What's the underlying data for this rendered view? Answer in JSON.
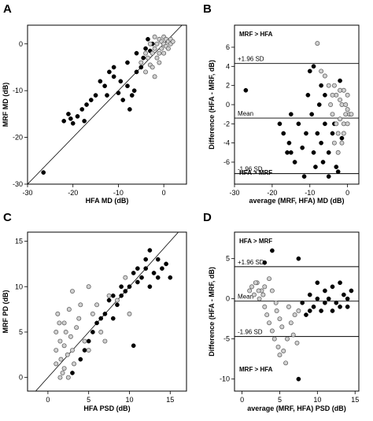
{
  "chart_data": [
    {
      "panel": "A",
      "type": "scatter",
      "xlabel": "HFA MD (dB)",
      "ylabel": "MRF MD (dB)",
      "xlim": [
        -30,
        5
      ],
      "ylim": [
        -30,
        4
      ],
      "xticks": [
        -30,
        -20,
        -10,
        0
      ],
      "yticks": [
        -30,
        -20,
        -10,
        0
      ],
      "identity_line": true,
      "series": [
        {
          "marker": "filled",
          "points": [
            [
              -26.5,
              -27.5
            ],
            [
              -22,
              -16.5
            ],
            [
              -21,
              -15
            ],
            [
              -20.5,
              -16
            ],
            [
              -20,
              -17
            ],
            [
              -19,
              -15.5
            ],
            [
              -18,
              -14
            ],
            [
              -17.5,
              -16.5
            ],
            [
              -17,
              -13
            ],
            [
              -16,
              -12
            ],
            [
              -15,
              -11
            ],
            [
              -14,
              -8
            ],
            [
              -13,
              -9
            ],
            [
              -12,
              -6
            ],
            [
              -11,
              -5
            ],
            [
              -12.5,
              -11
            ],
            [
              -11,
              -7
            ],
            [
              -10,
              -10.5
            ],
            [
              -9.5,
              -8
            ],
            [
              -9,
              -12
            ],
            [
              -8,
              -4
            ],
            [
              -8,
              -9
            ],
            [
              -7.5,
              -14
            ],
            [
              -7,
              -11
            ],
            [
              -6.5,
              -10
            ],
            [
              -6,
              -2
            ],
            [
              -6,
              -6
            ],
            [
              -5,
              -5
            ],
            [
              -4.5,
              -3
            ],
            [
              -4,
              -1
            ],
            [
              -3.5,
              1
            ],
            [
              -3,
              -1.5
            ],
            [
              -2.5,
              0
            ]
          ]
        },
        {
          "marker": "open",
          "points": [
            [
              -5,
              -4
            ],
            [
              -4,
              -6
            ],
            [
              -3.5,
              -3
            ],
            [
              -3,
              -4.5
            ],
            [
              -2.5,
              -2
            ],
            [
              -2.5,
              -5
            ],
            [
              -2,
              -1
            ],
            [
              -2,
              -7
            ],
            [
              -1.5,
              0
            ],
            [
              -1.5,
              -3
            ],
            [
              -1,
              1
            ],
            [
              -1,
              -2
            ],
            [
              -1,
              -4
            ],
            [
              -0.5,
              0.5
            ],
            [
              -0.5,
              -1
            ],
            [
              0,
              1.5
            ],
            [
              0,
              0
            ],
            [
              0,
              -2
            ],
            [
              0.5,
              1
            ],
            [
              0.5,
              -0.5
            ],
            [
              1,
              0.5
            ],
            [
              1,
              -1
            ],
            [
              1.5,
              1
            ],
            [
              1.5,
              0
            ],
            [
              2,
              0.5
            ],
            [
              -2,
              1.5
            ],
            [
              -3,
              0
            ],
            [
              -4,
              -2
            ]
          ]
        }
      ]
    },
    {
      "panel": "B",
      "type": "scatter",
      "xlabel": "average (MRF, HFA) MD (dB)",
      "ylabel": "Difference (HFA - MRF, dB)",
      "xlim": [
        -30,
        3
      ],
      "ylim": [
        -8.3,
        8.3
      ],
      "xticks": [
        -30,
        -20,
        -10,
        0
      ],
      "yticks": [
        -6,
        -4,
        -2,
        0,
        2,
        4,
        6
      ],
      "reference_lines": [
        {
          "label": "+1.96 SD",
          "y": 4.3
        },
        {
          "label": "Mean",
          "y": -1.4
        },
        {
          "label": "-1.96 SD",
          "y": -7.2
        }
      ],
      "annotations": [
        "MRF > HFA",
        "HFA > MRF"
      ],
      "series": [
        {
          "marker": "filled",
          "points": [
            [
              -27,
              1.5
            ],
            [
              -18,
              -2
            ],
            [
              -17,
              -3
            ],
            [
              -16,
              -5
            ],
            [
              -15.5,
              -4
            ],
            [
              -15,
              -1
            ],
            [
              -14,
              -6
            ],
            [
              -13,
              -2
            ],
            [
              -12,
              -4.5
            ],
            [
              -11.5,
              -7.5
            ],
            [
              -11,
              -3
            ],
            [
              -10.5,
              1
            ],
            [
              -10,
              3.5
            ],
            [
              -9.5,
              -1
            ],
            [
              -9,
              4
            ],
            [
              -9,
              -5
            ],
            [
              -8.5,
              -6.5
            ],
            [
              -8,
              -3
            ],
            [
              -7.5,
              0
            ],
            [
              -7,
              2
            ],
            [
              -7,
              -4
            ],
            [
              -6.5,
              -6
            ],
            [
              -6,
              1
            ],
            [
              -6,
              -2
            ],
            [
              -5,
              -5
            ],
            [
              -5,
              -7.5
            ],
            [
              -4,
              -3
            ],
            [
              -3.5,
              -2
            ],
            [
              -3,
              -6.5
            ],
            [
              -2.5,
              -7
            ],
            [
              -2,
              2.5
            ],
            [
              -1.5,
              -3.5
            ],
            [
              -15,
              -5
            ]
          ]
        },
        {
          "marker": "open",
          "points": [
            [
              -8,
              6.4
            ],
            [
              -7,
              3.5
            ],
            [
              -6,
              3
            ],
            [
              -5,
              2
            ],
            [
              -4.5,
              0
            ],
            [
              -4,
              -1
            ],
            [
              -3.5,
              2
            ],
            [
              -3,
              1
            ],
            [
              -3,
              -2
            ],
            [
              -2.5,
              -3
            ],
            [
              -2,
              0.5
            ],
            [
              -2,
              -1.5
            ],
            [
              -1.5,
              0
            ],
            [
              -1.5,
              -4
            ],
            [
              -1,
              1.5
            ],
            [
              -1,
              -2
            ],
            [
              -1,
              -3
            ],
            [
              -0.5,
              0
            ],
            [
              -0.5,
              -1
            ],
            [
              0,
              1
            ],
            [
              0,
              -2
            ],
            [
              0,
              -0.5
            ],
            [
              0.5,
              -1
            ],
            [
              1,
              -1
            ],
            [
              -2.5,
              -5
            ],
            [
              -3.5,
              -4
            ],
            [
              -4,
              1
            ],
            [
              -2,
              1.5
            ]
          ]
        }
      ]
    },
    {
      "panel": "C",
      "type": "scatter",
      "xlabel": "HFA PSD (dB)",
      "ylabel": "MRF PD (dB)",
      "xlim": [
        -2.5,
        17
      ],
      "ylim": [
        -1.5,
        16
      ],
      "xticks": [
        0,
        5,
        10,
        15
      ],
      "yticks": [
        0,
        5,
        10,
        15
      ],
      "identity_line": true,
      "series": [
        {
          "marker": "filled",
          "points": [
            [
              3,
              0.5
            ],
            [
              4,
              2
            ],
            [
              4.5,
              3
            ],
            [
              5,
              4
            ],
            [
              5.5,
              5
            ],
            [
              6,
              6
            ],
            [
              6.5,
              6.5
            ],
            [
              7,
              7
            ],
            [
              7.5,
              8.5
            ],
            [
              8,
              9
            ],
            [
              8.5,
              8
            ],
            [
              9,
              10
            ],
            [
              9.5,
              9.5
            ],
            [
              10,
              10
            ],
            [
              10.5,
              11.5
            ],
            [
              11,
              12
            ],
            [
              11,
              10.5
            ],
            [
              11.5,
              11
            ],
            [
              12,
              12
            ],
            [
              12,
              13
            ],
            [
              12.5,
              10
            ],
            [
              13,
              11.5
            ],
            [
              13.5,
              13
            ],
            [
              14,
              12
            ],
            [
              14.5,
              12.5
            ],
            [
              15,
              11
            ],
            [
              12.5,
              14
            ],
            [
              13.5,
              11
            ],
            [
              10.5,
              3.5
            ],
            [
              9,
              9
            ],
            [
              8,
              6.5
            ]
          ]
        },
        {
          "marker": "open",
          "points": [
            [
              1,
              5
            ],
            [
              1,
              3
            ],
            [
              1,
              1.5
            ],
            [
              1.2,
              7
            ],
            [
              1.4,
              6
            ],
            [
              1.5,
              4
            ],
            [
              1.6,
              2
            ],
            [
              1.8,
              0.5
            ],
            [
              2,
              6
            ],
            [
              2,
              3.5
            ],
            [
              2,
              1
            ],
            [
              2.2,
              5
            ],
            [
              2.4,
              2.5
            ],
            [
              2.6,
              7.5
            ],
            [
              2.8,
              4.5
            ],
            [
              3,
              3
            ],
            [
              3,
              9.5
            ],
            [
              3.2,
              1.5
            ],
            [
              3.5,
              5.5
            ],
            [
              3.8,
              6.5
            ],
            [
              4,
              8
            ],
            [
              4.5,
              4
            ],
            [
              5,
              3
            ],
            [
              5,
              10
            ],
            [
              5.5,
              7
            ],
            [
              6,
              8
            ],
            [
              6.5,
              5
            ],
            [
              7,
              4
            ],
            [
              7.5,
              9
            ],
            [
              8.5,
              8.5
            ],
            [
              9.5,
              11
            ],
            [
              10,
              7
            ],
            [
              1.5,
              0
            ],
            [
              2.5,
              0
            ]
          ]
        }
      ]
    },
    {
      "panel": "D",
      "type": "scatter",
      "xlabel": "average (MRF, HFA) PSD (dB)",
      "ylabel": "Difference (HFA - MRF, dB)",
      "xlim": [
        -1,
        15.5
      ],
      "ylim": [
        -11.5,
        8.3
      ],
      "xticks": [
        0,
        5,
        10,
        15
      ],
      "yticks": [
        -10,
        -5,
        0,
        5
      ],
      "reference_lines": [
        {
          "label": "+1.96 SD",
          "y": 4
        },
        {
          "label": "Mean",
          "y": -0.3
        },
        {
          "label": "-1.96 SD",
          "y": -4.7
        }
      ],
      "annotations": [
        "HFA > MRF",
        "MRF > HFA"
      ],
      "series": [
        {
          "marker": "filled",
          "points": [
            [
              4,
              6
            ],
            [
              7.5,
              5
            ],
            [
              3,
              4.5
            ],
            [
              10,
              2
            ],
            [
              11,
              1
            ],
            [
              11.5,
              0
            ],
            [
              12,
              1.5
            ],
            [
              12.5,
              -0.5
            ],
            [
              13,
              2
            ],
            [
              13.5,
              0.5
            ],
            [
              14,
              -1
            ],
            [
              14.5,
              1
            ],
            [
              12,
              -1.5
            ],
            [
              11,
              -0.5
            ],
            [
              10,
              0
            ],
            [
              9.5,
              -1
            ],
            [
              9,
              -1.5
            ],
            [
              8.5,
              -2
            ],
            [
              8,
              -0.5
            ],
            [
              10.5,
              -1.5
            ],
            [
              13,
              -1
            ],
            [
              14,
              0
            ],
            [
              9,
              0.5
            ],
            [
              7.5,
              -10
            ]
          ]
        },
        {
          "marker": "open",
          "points": [
            [
              1,
              1
            ],
            [
              1.3,
              1.5
            ],
            [
              1.6,
              0.5
            ],
            [
              2,
              2
            ],
            [
              2.3,
              0
            ],
            [
              2.6,
              1
            ],
            [
              3,
              -1
            ],
            [
              3,
              1.5
            ],
            [
              3.3,
              -2
            ],
            [
              3.6,
              -3
            ],
            [
              3.6,
              2.5
            ],
            [
              4,
              -4
            ],
            [
              4,
              1
            ],
            [
              4.3,
              -5
            ],
            [
              4.5,
              -0.5
            ],
            [
              4.8,
              -6
            ],
            [
              5,
              -2.5
            ],
            [
              5,
              -7
            ],
            [
              5.3,
              -3.5
            ],
            [
              5.5,
              -6.5
            ],
            [
              5.8,
              -8
            ],
            [
              6,
              -5
            ],
            [
              6.2,
              -1
            ],
            [
              6.5,
              -3
            ],
            [
              6.8,
              -4.5
            ],
            [
              7,
              -2
            ],
            [
              7.3,
              -5.5
            ],
            [
              7.5,
              -1.5
            ],
            [
              2.2,
              1
            ],
            [
              1.8,
              2
            ],
            [
              2.8,
              0.5
            ],
            [
              4.6,
              -1.5
            ]
          ]
        }
      ]
    }
  ]
}
